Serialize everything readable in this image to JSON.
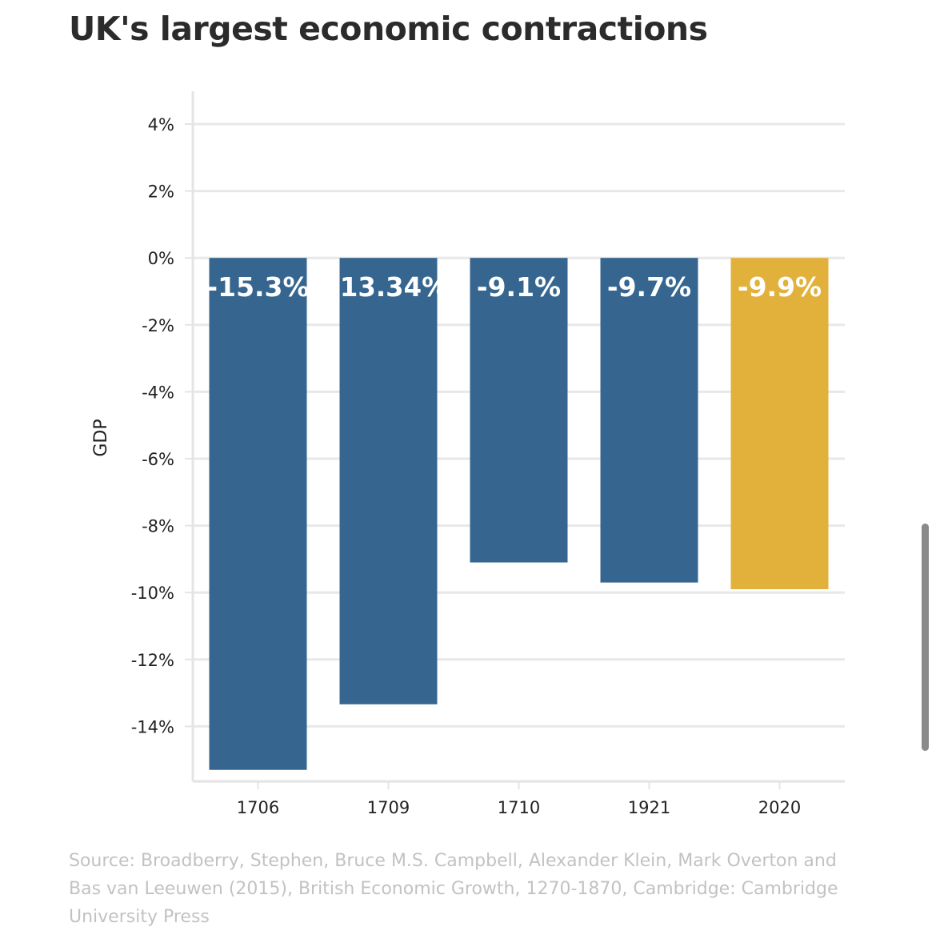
{
  "title": "UK's largest economic contractions",
  "source": "Source: Broadberry, Stephen, Bruce M.S. Campbell, Alexander Klein, Mark Overton and Bas van Leeuwen (2015), British Economic Growth, 1270-1870, Cambridge: Cambridge University Press",
  "chart_data": {
    "type": "bar",
    "categories": [
      "1706",
      "1709",
      "1710",
      "1921",
      "2020"
    ],
    "values": [
      -15.3,
      -13.34,
      -9.1,
      -9.7,
      -9.9
    ],
    "data_labels": [
      "-15.3%",
      "-13.34%",
      "-9.1%",
      "-9.7%",
      "-9.9%"
    ],
    "title": "UK's largest economic contractions",
    "xlabel": "",
    "ylabel": "GDP",
    "ylim": [
      -15.5,
      4.5
    ],
    "yticks": [
      4,
      2,
      0,
      -2,
      -4,
      -6,
      -8,
      -10,
      -12,
      -14
    ],
    "ytick_labels": [
      "4%",
      "2%",
      "0%",
      "-2%",
      "-4%",
      "-6%",
      "-8%",
      "-10%",
      "-12%",
      "-14%"
    ],
    "grid": true,
    "legend": "none",
    "colors": {
      "default": "#36668f",
      "highlight": "#e2b13c",
      "highlight_category": "2020"
    }
  }
}
